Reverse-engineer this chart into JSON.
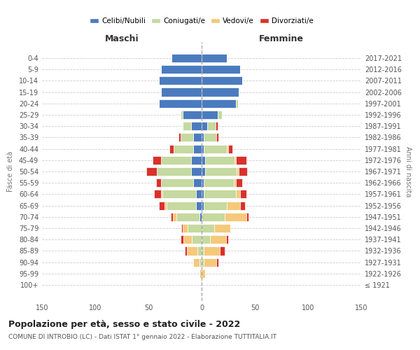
{
  "age_groups": [
    "100+",
    "95-99",
    "90-94",
    "85-89",
    "80-84",
    "75-79",
    "70-74",
    "65-69",
    "60-64",
    "55-59",
    "50-54",
    "45-49",
    "40-44",
    "35-39",
    "30-34",
    "25-29",
    "20-24",
    "15-19",
    "10-14",
    "5-9",
    "0-4"
  ],
  "birth_years": [
    "≤ 1921",
    "1922-1926",
    "1927-1931",
    "1932-1936",
    "1937-1941",
    "1942-1946",
    "1947-1951",
    "1952-1956",
    "1957-1961",
    "1962-1966",
    "1967-1971",
    "1972-1976",
    "1977-1981",
    "1982-1986",
    "1987-1991",
    "1992-1996",
    "1997-2001",
    "2002-2006",
    "2007-2011",
    "2012-2016",
    "2017-2021"
  ],
  "maschi": {
    "celibi": [
      0,
      0,
      0,
      0,
      0,
      0,
      2,
      5,
      5,
      8,
      10,
      10,
      8,
      8,
      10,
      18,
      40,
      38,
      40,
      38,
      28
    ],
    "coniugati": [
      0,
      0,
      2,
      4,
      9,
      13,
      22,
      28,
      32,
      30,
      32,
      28,
      18,
      12,
      8,
      2,
      0,
      0,
      0,
      0,
      0
    ],
    "vedovi": [
      0,
      2,
      6,
      10,
      8,
      5,
      3,
      2,
      1,
      0,
      0,
      0,
      0,
      0,
      0,
      0,
      0,
      0,
      0,
      0,
      0
    ],
    "divorziati": [
      0,
      0,
      0,
      2,
      3,
      1,
      2,
      5,
      7,
      5,
      10,
      8,
      4,
      2,
      0,
      0,
      0,
      0,
      0,
      0,
      0
    ]
  },
  "femmine": {
    "nubili": [
      0,
      0,
      0,
      0,
      0,
      0,
      0,
      2,
      2,
      2,
      3,
      3,
      2,
      2,
      5,
      15,
      32,
      35,
      38,
      36,
      24
    ],
    "coniugate": [
      0,
      0,
      2,
      2,
      8,
      12,
      22,
      22,
      30,
      28,
      30,
      28,
      22,
      12,
      8,
      4,
      2,
      0,
      0,
      0,
      0
    ],
    "vedove": [
      0,
      3,
      12,
      15,
      15,
      15,
      20,
      12,
      4,
      2,
      2,
      1,
      1,
      0,
      0,
      0,
      0,
      0,
      0,
      0,
      0
    ],
    "divorziate": [
      0,
      0,
      2,
      5,
      2,
      0,
      2,
      5,
      6,
      6,
      8,
      10,
      4,
      2,
      2,
      0,
      0,
      0,
      0,
      0,
      0
    ]
  },
  "color_celibi": "#4b7bbf",
  "color_coniugati": "#c5d9a0",
  "color_vedovi": "#f5c97a",
  "color_divorziati": "#d9312b",
  "xlim": 150,
  "title_main": "Popolazione per età, sesso e stato civile - 2022",
  "title_sub": "COMUNE DI INTROBIO (LC) - Dati ISTAT 1° gennaio 2022 - Elaborazione TUTTITALIA.IT",
  "label_maschi": "Maschi",
  "label_femmine": "Femmine",
  "label_fasce": "Fasce di età",
  "label_anni": "Anni di nascita",
  "legend_celibi": "Celibi/Nubili",
  "legend_coniugati": "Coniugati/e",
  "legend_vedovi": "Vedovi/e",
  "legend_divorziati": "Divorziati/e"
}
